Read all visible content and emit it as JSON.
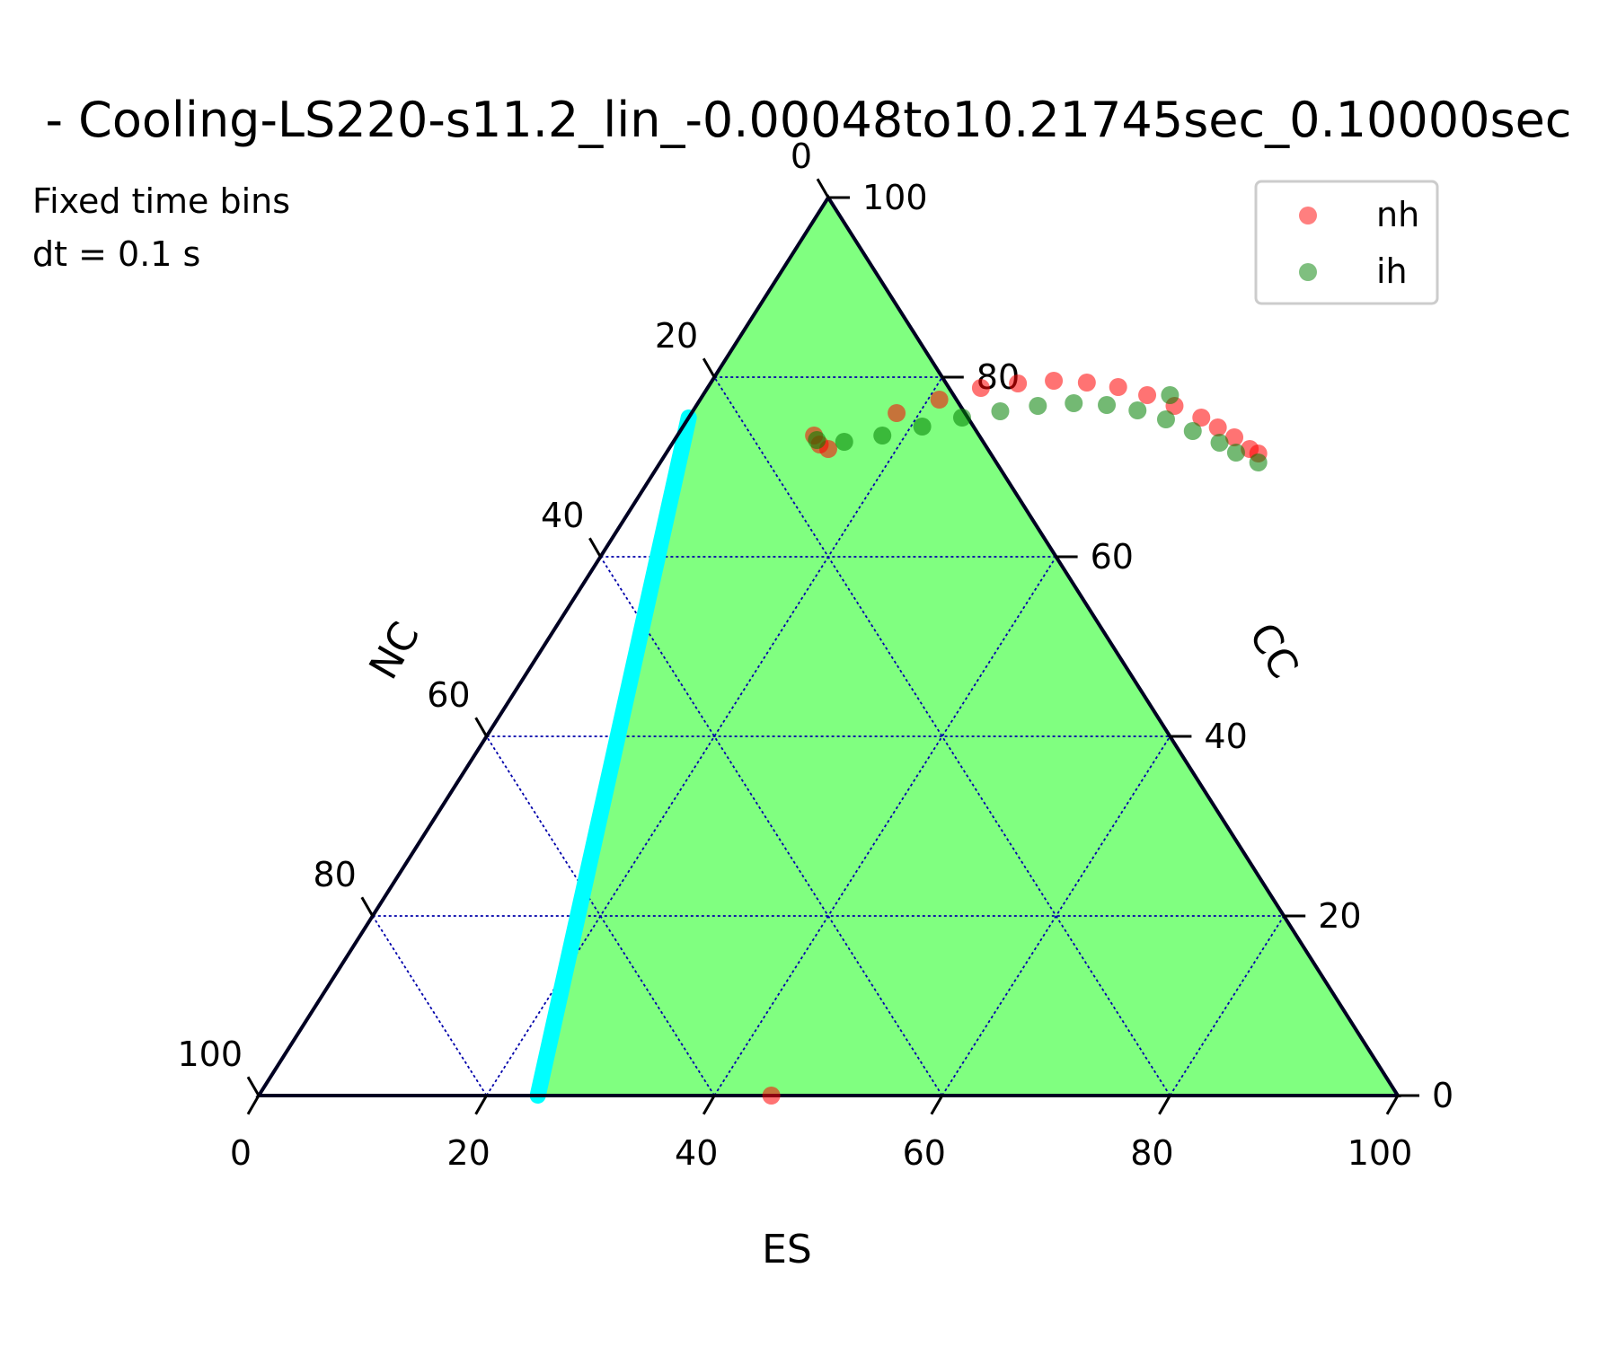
{
  "chart_data": {
    "type": "scatter",
    "title": "- Cooling-LS220-s11.2_lin_-0.00048to10.21745sec_0.10000sec",
    "annotation": [
      "Fixed time bins",
      "dt = 0.1 s"
    ],
    "axes": {
      "bottom": {
        "label": "ES",
        "ticks": [
          "0",
          "20",
          "40",
          "60",
          "80",
          "100"
        ]
      },
      "left": {
        "label": "NC",
        "ticks": [
          "0",
          "20",
          "40",
          "60",
          "80",
          "100"
        ]
      },
      "right": {
        "label": "CC",
        "ticks": [
          "0",
          "20",
          "40",
          "60",
          "80",
          "100"
        ]
      },
      "range": [
        0,
        100
      ],
      "grid": true
    },
    "regions": {
      "fill_color": "#80ff80",
      "boundary_color": "#00ffff",
      "boundary_es_at_nc0": 24.5,
      "boundary_es_at_nc100": 24.5
    },
    "legend": {
      "position": "top-right"
    },
    "series": [
      {
        "name": "nh",
        "color": "#ff0000",
        "points": [
          [
            14.0,
            72.0
          ],
          [
            18.0,
            76.0
          ],
          [
            21.0,
            77.5
          ],
          [
            24.0,
            78.8
          ],
          [
            27.0,
            79.3
          ],
          [
            30.0,
            79.6
          ],
          [
            33.0,
            79.4
          ],
          [
            36.0,
            78.9
          ],
          [
            39.0,
            78.0
          ],
          [
            42.0,
            76.8
          ],
          [
            45.0,
            75.5
          ],
          [
            47.0,
            74.4
          ],
          [
            49.0,
            73.3
          ],
          [
            51.0,
            72.0
          ],
          [
            52.0,
            71.5
          ],
          [
            12.0,
            73.5
          ],
          [
            13.0,
            72.5
          ],
          [
            45.0,
            0.0
          ]
        ]
      },
      {
        "name": "ih",
        "color": "#008000",
        "points": [
          [
            12.5,
            73.0
          ],
          [
            15.0,
            72.8
          ],
          [
            18.0,
            73.5
          ],
          [
            21.0,
            74.5
          ],
          [
            24.0,
            75.5
          ],
          [
            27.0,
            76.2
          ],
          [
            30.0,
            76.8
          ],
          [
            33.0,
            77.1
          ],
          [
            36.0,
            76.9
          ],
          [
            39.0,
            76.3
          ],
          [
            42.0,
            75.3
          ],
          [
            45.0,
            74.0
          ],
          [
            48.0,
            72.7
          ],
          [
            50.0,
            71.6
          ],
          [
            52.5,
            70.5
          ],
          [
            41.0,
            78.0
          ]
        ]
      }
    ]
  }
}
